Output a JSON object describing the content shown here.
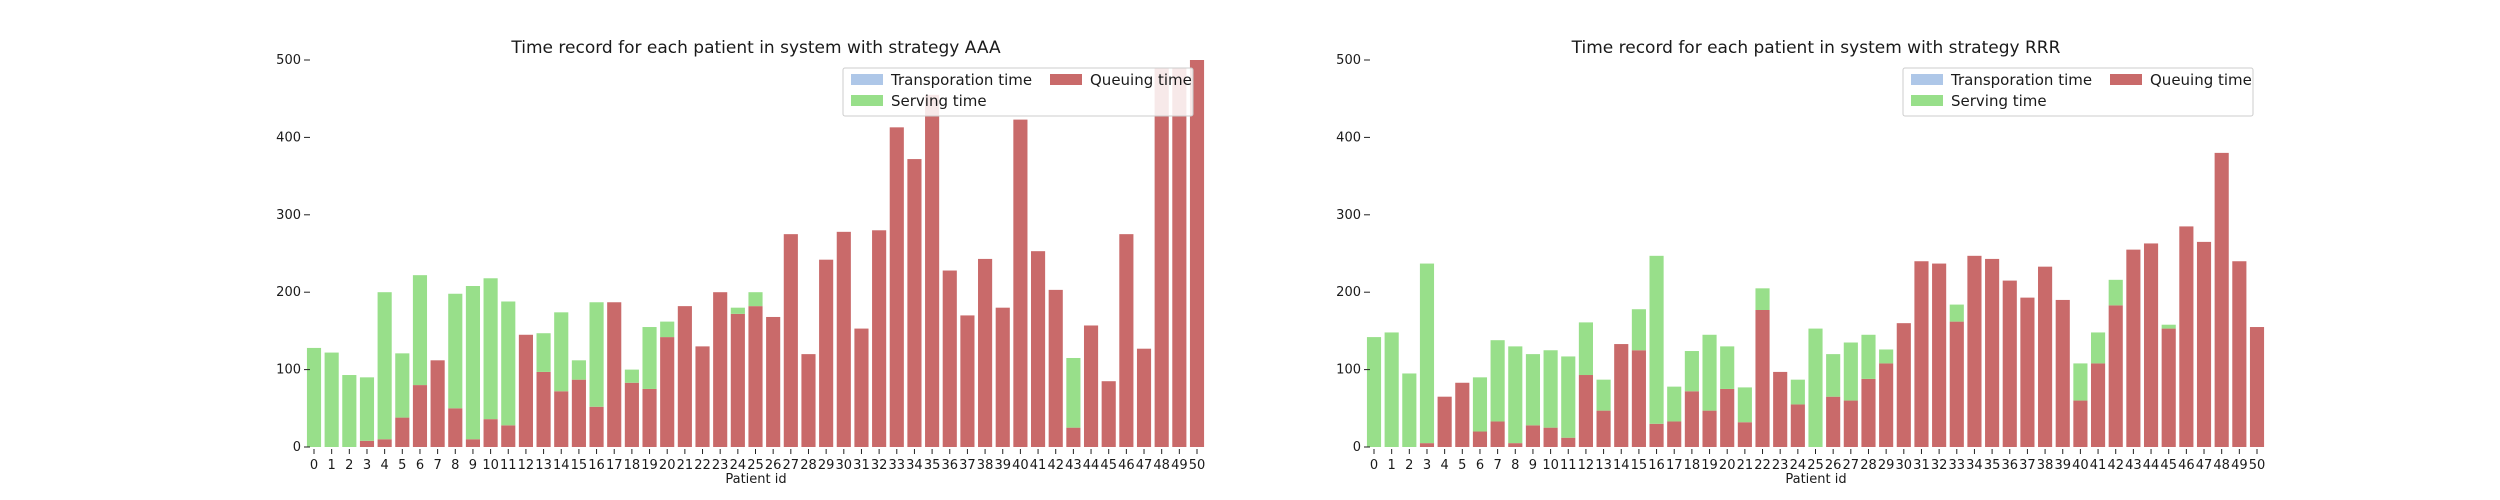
{
  "colors": {
    "transport": "#aec7e8",
    "serving": "#98df8a",
    "queuing": "#c96a6a",
    "legend_border": "#cccccc",
    "axis": "#222222"
  },
  "chart_data": [
    {
      "type": "bar",
      "stacked": true,
      "title": "Time record for each patient in system with strategy AAA",
      "xlabel": "Patient id",
      "ylabel": "",
      "ylim": [
        0,
        500
      ],
      "yticks": [
        0,
        100,
        200,
        300,
        400,
        500
      ],
      "categories": [
        "0",
        "1",
        "2",
        "3",
        "4",
        "5",
        "6",
        "7",
        "8",
        "9",
        "10",
        "11",
        "12",
        "13",
        "14",
        "15",
        "16",
        "17",
        "18",
        "19",
        "20",
        "21",
        "22",
        "23",
        "24",
        "25",
        "26",
        "27",
        "28",
        "29",
        "30",
        "31",
        "32",
        "33",
        "34",
        "35",
        "36",
        "37",
        "38",
        "39",
        "40",
        "41",
        "42",
        "43",
        "44",
        "45",
        "46",
        "47",
        "48",
        "49",
        "50"
      ],
      "legend": {
        "location": "top-right",
        "entries": [
          "Transporation time",
          "Serving time",
          "Queuing time"
        ]
      },
      "series": [
        {
          "name": "Queuing time",
          "key": "queuing",
          "values": [
            0,
            0,
            0,
            8,
            10,
            38,
            80,
            112,
            50,
            10,
            36,
            28,
            145,
            97,
            72,
            87,
            52,
            187,
            83,
            75,
            142,
            182,
            130,
            200,
            172,
            182,
            168,
            275,
            120,
            242,
            278,
            153,
            280,
            413,
            372,
            455,
            228,
            170,
            243,
            180,
            423,
            253,
            203,
            25,
            157,
            85,
            275,
            127,
            490,
            490,
            500
          ]
        },
        {
          "name": "Serving time",
          "key": "serving",
          "values": [
            128,
            122,
            93,
            82,
            190,
            83,
            142,
            0,
            148,
            198,
            182,
            160,
            0,
            50,
            102,
            25,
            135,
            0,
            17,
            80,
            20,
            0,
            0,
            0,
            8,
            18,
            0,
            0,
            0,
            0,
            0,
            0,
            0,
            0,
            0,
            0,
            0,
            0,
            0,
            0,
            0,
            0,
            0,
            90,
            0,
            0,
            0,
            0,
            0,
            0,
            0
          ]
        },
        {
          "name": "Transporation time",
          "key": "transport",
          "values": [
            0,
            0,
            0,
            0,
            0,
            0,
            0,
            0,
            0,
            0,
            0,
            0,
            0,
            0,
            0,
            0,
            0,
            0,
            0,
            0,
            0,
            0,
            0,
            0,
            0,
            0,
            0,
            0,
            0,
            0,
            0,
            0,
            0,
            0,
            0,
            0,
            0,
            0,
            0,
            0,
            0,
            0,
            0,
            0,
            0,
            0,
            0,
            0,
            0,
            0,
            0
          ]
        }
      ]
    },
    {
      "type": "bar",
      "stacked": true,
      "title": "Time record for each patient in system with strategy RRR",
      "xlabel": "Patient id",
      "ylabel": "",
      "ylim": [
        0,
        500
      ],
      "yticks": [
        0,
        100,
        200,
        300,
        400,
        500
      ],
      "categories": [
        "0",
        "1",
        "2",
        "3",
        "4",
        "5",
        "6",
        "7",
        "8",
        "9",
        "10",
        "11",
        "12",
        "13",
        "14",
        "15",
        "16",
        "17",
        "18",
        "19",
        "20",
        "21",
        "22",
        "23",
        "24",
        "25",
        "26",
        "27",
        "28",
        "29",
        "30",
        "31",
        "32",
        "33",
        "34",
        "35",
        "36",
        "37",
        "38",
        "39",
        "40",
        "41",
        "42",
        "43",
        "44",
        "45",
        "46",
        "47",
        "48",
        "49",
        "50"
      ],
      "legend": {
        "location": "top-right",
        "entries": [
          "Transporation time",
          "Serving time",
          "Queuing time"
        ]
      },
      "series": [
        {
          "name": "Queuing time",
          "key": "queuing",
          "values": [
            0,
            0,
            0,
            5,
            65,
            83,
            20,
            33,
            5,
            28,
            25,
            12,
            93,
            47,
            133,
            125,
            30,
            33,
            72,
            47,
            75,
            32,
            177,
            97,
            55,
            0,
            65,
            60,
            88,
            108,
            160,
            240,
            237,
            162,
            247,
            243,
            215,
            193,
            233,
            190,
            60,
            108,
            183,
            255,
            263,
            153,
            285,
            265,
            380,
            240,
            155
          ]
        },
        {
          "name": "Serving time",
          "key": "serving",
          "values": [
            142,
            148,
            95,
            232,
            0,
            0,
            70,
            105,
            125,
            92,
            100,
            105,
            68,
            40,
            0,
            53,
            217,
            45,
            52,
            98,
            55,
            45,
            28,
            0,
            32,
            153,
            55,
            75,
            57,
            18,
            0,
            0,
            0,
            22,
            0,
            0,
            0,
            0,
            0,
            0,
            48,
            40,
            33,
            0,
            0,
            5,
            0,
            0,
            0,
            0,
            0
          ]
        },
        {
          "name": "Transporation time",
          "key": "transport",
          "values": [
            0,
            0,
            0,
            0,
            0,
            0,
            0,
            0,
            0,
            0,
            0,
            0,
            0,
            0,
            0,
            0,
            0,
            0,
            0,
            0,
            0,
            0,
            0,
            0,
            0,
            0,
            0,
            0,
            0,
            0,
            0,
            0,
            0,
            0,
            0,
            0,
            0,
            0,
            0,
            0,
            0,
            0,
            0,
            0,
            0,
            0,
            0,
            0,
            0,
            0,
            0
          ]
        }
      ]
    }
  ]
}
